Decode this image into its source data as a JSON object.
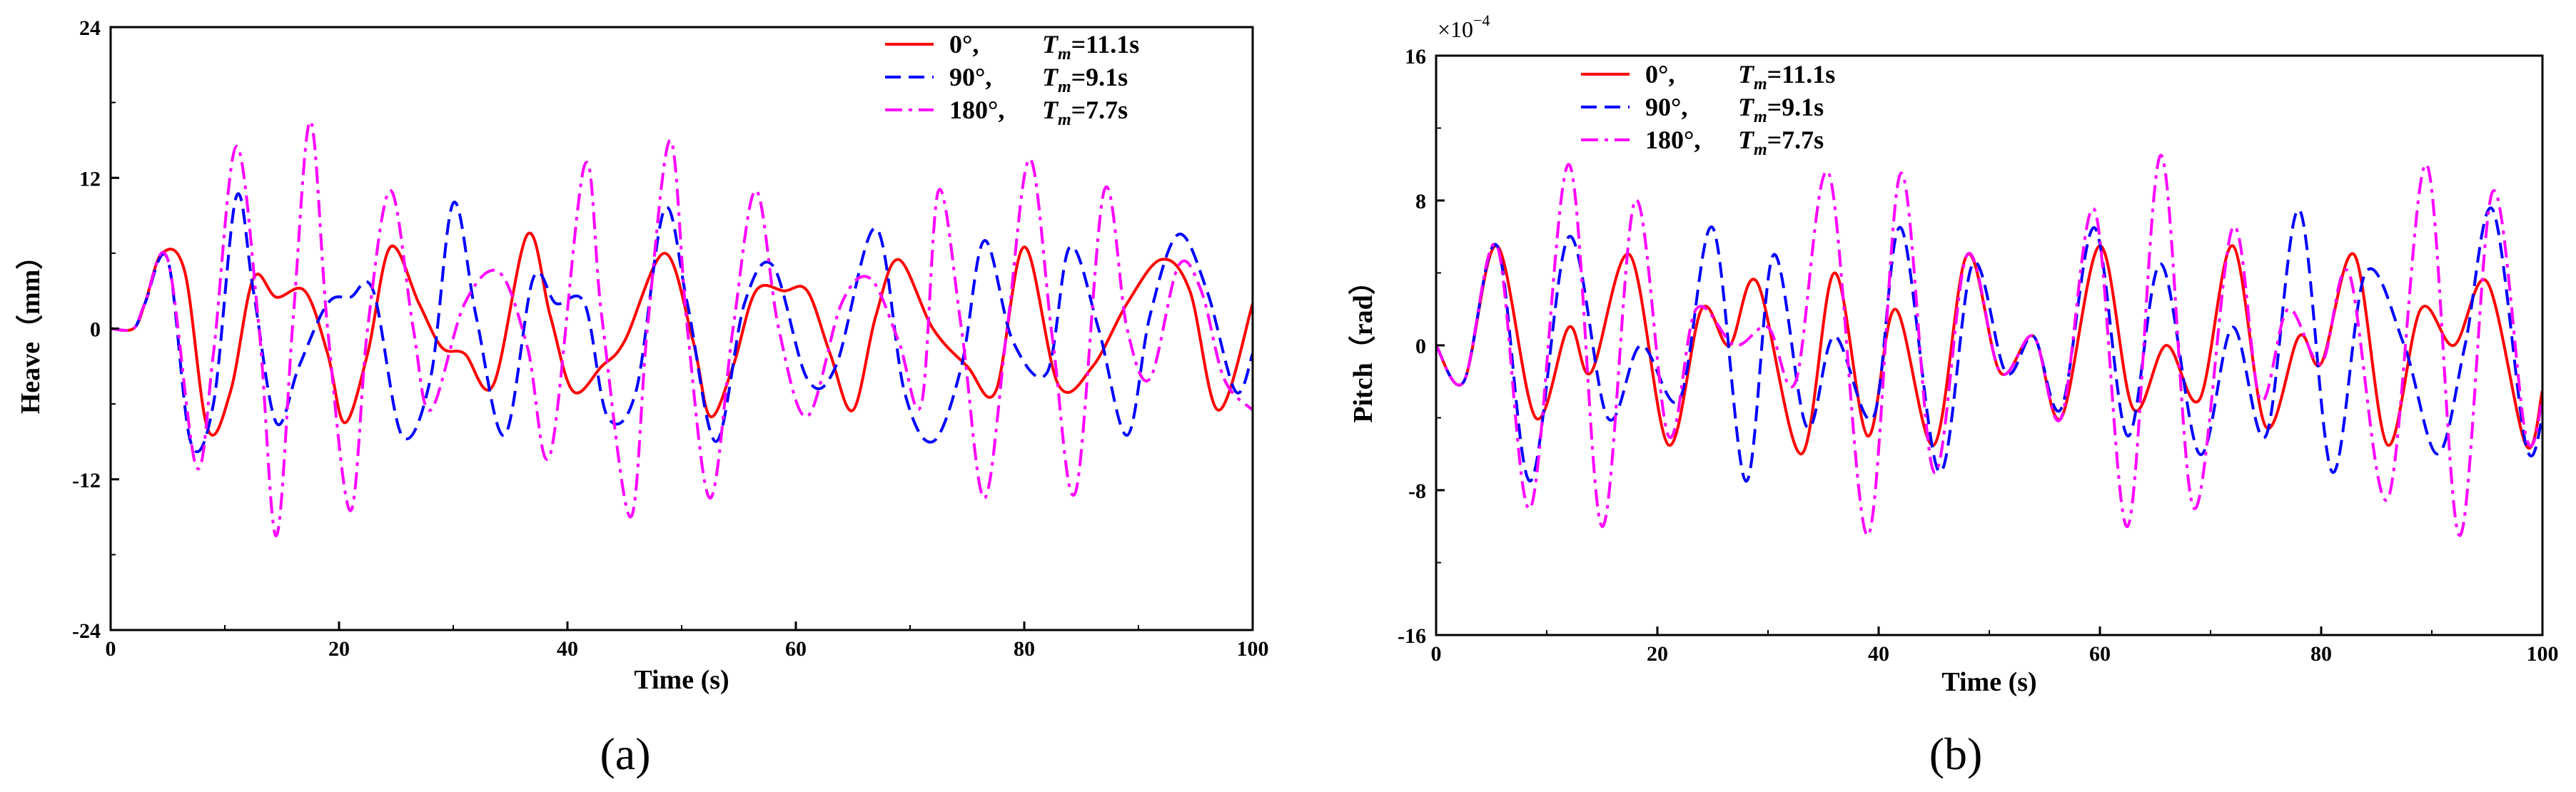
{
  "chart_data": [
    {
      "type": "line",
      "panel_label": "(a)",
      "xlabel": "Time (s)",
      "ylabel": "Heave（mm）",
      "xlim": [
        0,
        100
      ],
      "ylim": [
        -24,
        24
      ],
      "xticks": [
        0,
        20,
        40,
        60,
        80,
        100
      ],
      "yticks": [
        -24,
        -12,
        0,
        12,
        24
      ],
      "ytick_labels": [
        "-24",
        "-12",
        "0",
        "12",
        "24"
      ],
      "grid": false,
      "legend_position": "top-right",
      "series": [
        {
          "name": "0°,",
          "period_label": "=11.1s",
          "color": "#ff0000",
          "dash": "solid",
          "x": [
            0,
            2,
            3,
            4.5,
            6.5,
            8.5,
            10.5,
            12.5,
            14.5,
            17,
            19,
            20.5,
            22.5,
            24.5,
            27,
            29,
            31,
            33.5,
            36.5,
            38.5,
            40.5,
            43,
            45,
            48.5,
            51,
            52.5,
            54.5,
            56.5,
            59,
            61,
            63,
            65,
            67,
            69,
            72,
            75,
            77.5,
            80,
            83,
            86,
            89,
            92,
            94.5,
            97,
            100
          ],
          "y": [
            0,
            0,
            2,
            6,
            4.5,
            -8,
            -5,
            4,
            2.5,
            3,
            -2,
            -7.5,
            -2,
            6.5,
            2,
            -1.5,
            -2,
            -4.5,
            7.5,
            1,
            -5,
            -3,
            -1,
            6,
            -1,
            -7,
            -3,
            3,
            3,
            3,
            -2,
            -6.5,
            1,
            5.5,
            0,
            -3,
            -5,
            6.5,
            -4.5,
            -3,
            2,
            5.5,
            3,
            -6.5,
            2
          ]
        },
        {
          "name": "90°,",
          "period_label": "=9.1s",
          "color": "#0000ff",
          "dash": "dashed",
          "x": [
            0,
            2,
            3,
            5,
            7,
            9,
            11,
            12.5,
            14.5,
            16.5,
            19,
            21,
            23,
            25.5,
            28,
            30,
            32,
            34.5,
            37,
            39,
            41.5,
            43.5,
            46,
            48.5,
            50.5,
            53,
            55.5,
            58,
            61,
            63.5,
            67,
            69.5,
            72,
            74.5,
            76.5,
            79,
            82,
            84,
            86.5,
            89,
            91,
            93.5,
            96,
            98.5,
            100
          ],
          "y": [
            0,
            0,
            2,
            5.5,
            -9,
            -6,
            10.5,
            3,
            -7.5,
            -3,
            2,
            2.5,
            3,
            -8.5,
            -4,
            10,
            1,
            -8.5,
            4,
            2,
            2,
            -7,
            -5,
            9.5,
            2,
            -9,
            2,
            5,
            -4,
            -3,
            8,
            -5,
            -9,
            -3,
            7,
            -1,
            -3.5,
            6.5,
            0,
            -8.5,
            1,
            7.5,
            3,
            -5,
            -2
          ]
        },
        {
          "name": "180°,",
          "period_label": "=7.7s",
          "color": "#ff00ff",
          "dash": "dashdot",
          "x": [
            0,
            2,
            3,
            5,
            7.5,
            9,
            11,
            13,
            14.5,
            16,
            17.5,
            19,
            21,
            22.5,
            24.5,
            26.5,
            28,
            31,
            34,
            36.5,
            38.5,
            41.5,
            43,
            45.5,
            47,
            49,
            50.5,
            52.5,
            54.5,
            56.5,
            58.5,
            61,
            64,
            66.5,
            69,
            71,
            72.5,
            74.5,
            76.5,
            78.5,
            80.5,
            82.5,
            84.5,
            87,
            89,
            91,
            93.5,
            95.5,
            97.5,
            100
          ],
          "y": [
            0,
            0,
            2,
            5.5,
            -11,
            -2,
            14.5,
            0,
            -16.5,
            1,
            16.5,
            0,
            -14.5,
            0,
            11,
            0,
            -6.5,
            2,
            4.5,
            -1.5,
            -10,
            13,
            1,
            -15,
            0,
            15,
            0,
            -13.5,
            0,
            11,
            0,
            -7,
            2,
            4,
            -1,
            -6,
            11,
            0,
            -13.5,
            0,
            13.5,
            -1,
            -13,
            11,
            0,
            -4,
            5,
            3,
            -4,
            -6.5
          ]
        }
      ]
    },
    {
      "type": "line",
      "panel_label": "(b)",
      "xlabel": "Time (s)",
      "ylabel": "Pitch（rad）",
      "scale_label": "×10",
      "scale_exponent": "−4",
      "xlim": [
        0,
        100
      ],
      "ylim": [
        -16,
        16
      ],
      "xticks": [
        0,
        20,
        40,
        60,
        80,
        100
      ],
      "yticks": [
        -16,
        -8,
        0,
        8,
        16
      ],
      "ytick_labels": [
        "-16",
        "-8",
        "0",
        "8",
        "16"
      ],
      "grid": false,
      "legend_position": "top-left",
      "series": [
        {
          "name": "0°,",
          "period_label": "=11.1s",
          "color": "#ff0000",
          "dash": "solid",
          "x": [
            0,
            2.5,
            5.5,
            9,
            12,
            14,
            17.5,
            21,
            24,
            26.5,
            29,
            33,
            36,
            39,
            41.5,
            45,
            48,
            51,
            54,
            56.5,
            60,
            63,
            66,
            69,
            72,
            75,
            78,
            80,
            83,
            86,
            89,
            92,
            95,
            98.5,
            100
          ],
          "y": [
            0,
            -2,
            5.5,
            -4,
            1,
            -1.5,
            5,
            -5.5,
            2,
            0,
            3.5,
            -6,
            4,
            -5,
            2,
            -5.5,
            5,
            -1.5,
            0.5,
            -4,
            5.5,
            -3.5,
            0,
            -3,
            5.5,
            -4.5,
            0.5,
            -1,
            5,
            -5.5,
            2,
            0,
            3.5,
            -5.5,
            -2.5
          ]
        },
        {
          "name": "90°,",
          "period_label": "=9.1s",
          "color": "#0000ff",
          "dash": "dashed",
          "x": [
            0,
            2.5,
            5.5,
            8.5,
            12,
            15.5,
            18.5,
            22,
            25,
            28,
            30.5,
            33.5,
            36,
            39.5,
            42,
            45.5,
            48.5,
            51.5,
            54,
            56.5,
            59.5,
            62.5,
            65.5,
            69,
            72,
            75,
            78,
            81,
            84,
            87.5,
            90.5,
            93,
            95.5,
            98.5,
            100
          ],
          "y": [
            0,
            -2,
            5.5,
            -7.5,
            6,
            -4,
            0,
            -3,
            6.5,
            -7.5,
            5,
            -4.5,
            0.5,
            -4,
            6.5,
            -7,
            4.5,
            -1.5,
            0.5,
            -3.5,
            6.5,
            -5,
            4.5,
            -6,
            1,
            -5,
            7.5,
            -7,
            4,
            0,
            -6,
            0,
            7.5,
            -5.5,
            -4
          ]
        },
        {
          "name": "180°,",
          "period_label": "=7.7s",
          "color": "#ff00ff",
          "dash": "dashdot",
          "x": [
            0,
            2.5,
            5.5,
            8.5,
            12,
            15,
            18,
            21,
            23.5,
            27,
            30,
            32.5,
            35.5,
            39,
            42,
            45,
            48,
            51,
            54,
            56.5,
            59.5,
            62.5,
            65.5,
            68.5,
            72,
            74.5,
            77,
            80,
            82.5,
            86,
            89.5,
            92.5,
            95.5,
            98.5,
            100
          ],
          "y": [
            0,
            -2,
            5.5,
            -9,
            10,
            -10,
            8,
            -5,
            2,
            0,
            1,
            -2,
            9.5,
            -10.5,
            9.5,
            -7,
            5,
            -1.5,
            0.5,
            -4,
            7.5,
            -10,
            10.5,
            -9,
            6.5,
            -3,
            2,
            -1,
            4,
            -8.5,
            10,
            -10.5,
            8.5,
            -5,
            -3
          ]
        }
      ]
    }
  ]
}
